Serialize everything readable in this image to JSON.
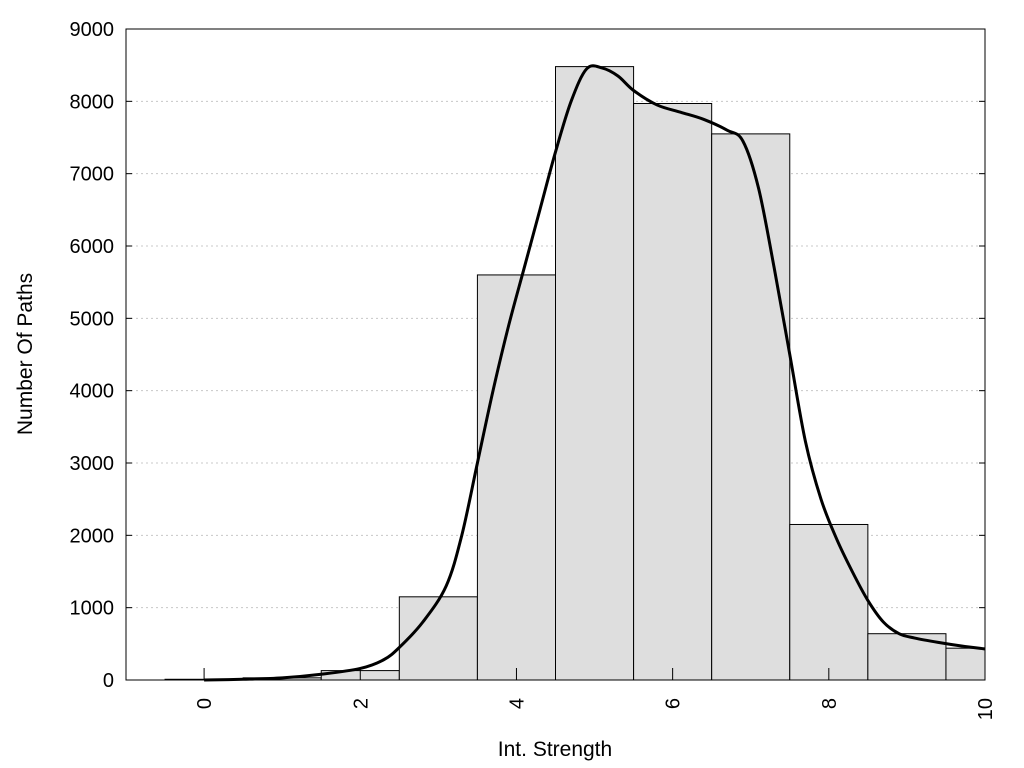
{
  "chart_data": {
    "type": "bar",
    "title": "",
    "xlabel": "Int. Strength",
    "ylabel": "Number Of Paths",
    "xlim": [
      -1,
      10
    ],
    "ylim": [
      0,
      9000
    ],
    "grid": "horizontal-dotted",
    "x_ticks": [
      {
        "value": 0,
        "label": "0"
      },
      {
        "value": 2,
        "label": "2"
      },
      {
        "value": 4,
        "label": "4"
      },
      {
        "value": 6,
        "label": "6"
      },
      {
        "value": 8,
        "label": "8"
      },
      {
        "value": 10,
        "label": "10"
      }
    ],
    "y_ticks": [
      {
        "value": 0,
        "label": "0"
      },
      {
        "value": 1000,
        "label": "1000"
      },
      {
        "value": 2000,
        "label": "2000"
      },
      {
        "value": 3000,
        "label": "3000"
      },
      {
        "value": 4000,
        "label": "4000"
      },
      {
        "value": 5000,
        "label": "5000"
      },
      {
        "value": 6000,
        "label": "6000"
      },
      {
        "value": 7000,
        "label": "7000"
      },
      {
        "value": 8000,
        "label": "8000"
      },
      {
        "value": 9000,
        "label": "9000"
      }
    ],
    "bars": [
      {
        "x": 0,
        "value": 10
      },
      {
        "x": 1,
        "value": 30
      },
      {
        "x": 2,
        "value": 130
      },
      {
        "x": 3,
        "value": 1150
      },
      {
        "x": 4,
        "value": 5600
      },
      {
        "x": 5,
        "value": 8480
      },
      {
        "x": 6,
        "value": 7970
      },
      {
        "x": 7,
        "value": 7550
      },
      {
        "x": 8,
        "value": 2150
      },
      {
        "x": 9,
        "value": 640
      },
      {
        "x": 10,
        "value": 440
      }
    ],
    "bar_width": 1,
    "density_curve": {
      "x": [
        0,
        0.5,
        1,
        1.5,
        2,
        2.3,
        2.5,
        2.8,
        3.1,
        3.3,
        3.5,
        3.7,
        3.9,
        4.1,
        4.3,
        4.5,
        4.7,
        4.9,
        5.1,
        5.3,
        5.5,
        5.8,
        6.1,
        6.4,
        6.7,
        6.9,
        7.1,
        7.3,
        7.5,
        7.7,
        7.9,
        8.1,
        8.3,
        8.5,
        8.7,
        8.9,
        9.1,
        9.4,
        9.7,
        10
      ],
      "y": [
        0,
        10,
        30,
        80,
        160,
        280,
        450,
        800,
        1300,
        2000,
        3000,
        4000,
        4900,
        5700,
        6500,
        7300,
        8000,
        8450,
        8460,
        8350,
        8150,
        7950,
        7850,
        7750,
        7600,
        7450,
        6800,
        5700,
        4500,
        3300,
        2500,
        1950,
        1500,
        1100,
        800,
        640,
        580,
        520,
        470,
        430
      ]
    }
  }
}
